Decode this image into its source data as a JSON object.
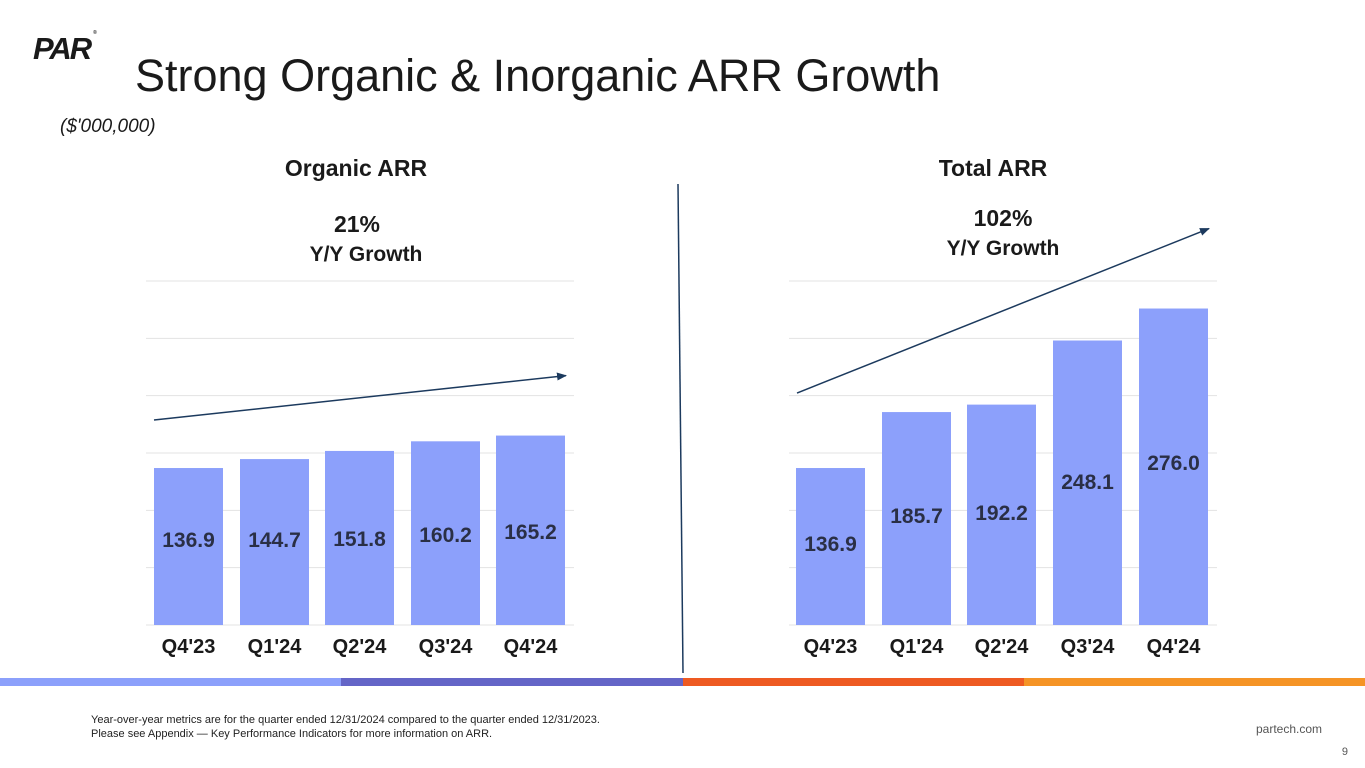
{
  "brand": {
    "logo_text": "PAR",
    "registered": "®"
  },
  "header": {
    "title": "Strong Organic & Inorganic ARR Growth",
    "units": "($'000,000)"
  },
  "colors": {
    "bar": "#8ca0fb",
    "arrow": "#1c3a5e",
    "grid": "#e3e3e3",
    "stripe1": "#8ca0fb",
    "stripe2": "#6465c7",
    "stripe3": "#ee5a22",
    "stripe4": "#f59426"
  },
  "chart_data": [
    {
      "type": "bar",
      "title": "Organic ARR",
      "categories": [
        "Q4'23",
        "Q1'24",
        "Q2'24",
        "Q3'24",
        "Q4'24"
      ],
      "values": [
        136.9,
        144.7,
        151.8,
        160.2,
        165.2
      ],
      "value_labels": [
        "136.9",
        "144.7",
        "151.8",
        "160.2",
        "165.2"
      ],
      "ylim": [
        0,
        300
      ],
      "grid": true,
      "annotation": {
        "pct": "21%",
        "label": "Y/Y Growth"
      }
    },
    {
      "type": "bar",
      "title": "Total ARR",
      "categories": [
        "Q4'23",
        "Q1'24",
        "Q2'24",
        "Q3'24",
        "Q4'24"
      ],
      "values": [
        136.9,
        185.7,
        192.2,
        248.1,
        276.0
      ],
      "value_labels": [
        "136.9",
        "185.7",
        "192.2",
        "248.1",
        "276.0"
      ],
      "ylim": [
        0,
        300
      ],
      "grid": true,
      "annotation": {
        "pct": "102%",
        "label": "Y/Y Growth"
      }
    }
  ],
  "footer": {
    "note_line1": "Year-over-year metrics are for the quarter ended 12/31/2024 compared to the quarter ended 12/31/2023.",
    "note_line2": "Please see Appendix — Key Performance Indicators for more information on ARR.",
    "site": "partech.com",
    "page": "9"
  }
}
